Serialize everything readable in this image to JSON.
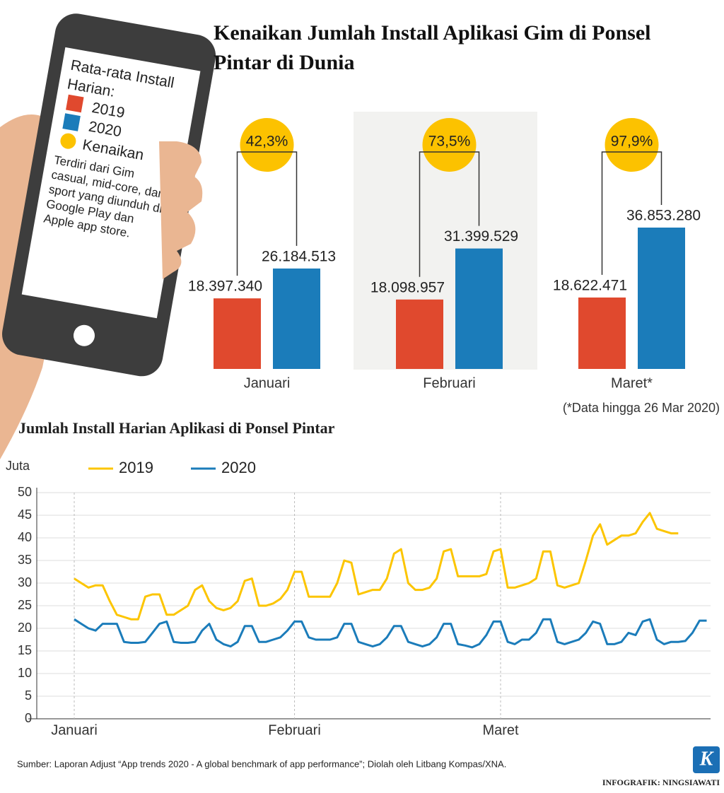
{
  "chart_data": [
    {
      "type": "bar",
      "title": "Kenaikan Jumlah Install Aplikasi Gim di Ponsel Pintar di Dunia",
      "legend_title": "Rata-rata Install Harian:",
      "legend_note": "Terdiri dari Gim casual, mid-core, dan sport yang diunduh di Google Play dan Apple app store.",
      "categories": [
        "Januari",
        "Februari",
        "Maret*"
      ],
      "series": [
        {
          "name": "2019",
          "color": "#e0492e",
          "values": [
            18397340,
            18098957,
            18622471
          ],
          "value_labels": [
            "18.397.340",
            "18.098.957",
            "18.622.471"
          ]
        },
        {
          "name": "2020",
          "color": "#1b7cba",
          "values": [
            26184513,
            31399529,
            36853280
          ],
          "value_labels": [
            "26.184.513",
            "31.399.529",
            "36.853.280"
          ]
        }
      ],
      "increase": {
        "name": "Kenaikan",
        "color": "#fcc200",
        "values": [
          42.3,
          73.5,
          97.9
        ],
        "value_labels": [
          "42,3%",
          "73,5%",
          "97,9%"
        ]
      },
      "note": "(*Data hingga 26 Mar 2020)"
    },
    {
      "type": "line",
      "title": "Jumlah Install Harian Aplikasi di Ponsel Pintar",
      "y_label": "Juta",
      "categories": [
        "Januari",
        null,
        null,
        null,
        null,
        null,
        null,
        null,
        null,
        null,
        null,
        null,
        null,
        null,
        null,
        null,
        null,
        null,
        null,
        null,
        null,
        null,
        null,
        null,
        null,
        null,
        null,
        null,
        null,
        null,
        null,
        "Februari",
        null,
        null,
        null,
        null,
        null,
        null,
        null,
        null,
        null,
        null,
        null,
        null,
        null,
        null,
        null,
        null,
        null,
        null,
        null,
        null,
        null,
        null,
        null,
        null,
        null,
        null,
        null,
        null,
        "Maret",
        null,
        null,
        null,
        null,
        null,
        null,
        null,
        null,
        null,
        null,
        null,
        null,
        null,
        null,
        null,
        null,
        null,
        null,
        null,
        null,
        null,
        null,
        null,
        null,
        null,
        null,
        null,
        null,
        null
      ],
      "series": [
        {
          "name": "2019",
          "color": "#fcc500",
          "values": [
            31,
            30,
            29,
            29.5,
            29.5,
            26,
            23,
            22.5,
            22,
            22,
            27,
            27.5,
            27.5,
            23,
            23,
            24,
            25,
            28.5,
            29.5,
            26,
            24.5,
            24,
            24.5,
            26,
            30.5,
            31,
            25,
            25,
            25.5,
            26.5,
            28.5,
            32.5,
            32.5,
            27,
            27,
            27,
            27,
            30,
            35,
            34.5,
            27.5,
            28,
            28.5,
            28.5,
            31,
            36.5,
            37.5,
            30,
            28.5,
            28.5,
            29,
            31,
            37,
            37.5,
            31.5,
            31.5,
            31.5,
            31.5,
            32,
            37,
            37.5,
            29,
            29,
            29.5,
            30,
            31,
            37,
            37,
            29.5,
            29,
            29.5,
            30,
            35,
            40.5,
            43,
            38.5,
            39.5,
            40.5,
            40.5,
            41,
            43.5,
            45.5,
            42,
            41.5,
            41,
            41,
            null,
            null,
            null,
            null
          ]
        },
        {
          "name": "2020",
          "color": "#1b7cba",
          "values": [
            22,
            21,
            20,
            19.5,
            21,
            21,
            21,
            17,
            16.8,
            16.8,
            17,
            19,
            21,
            21.5,
            17,
            16.8,
            16.8,
            17,
            19.5,
            21,
            17.5,
            16.5,
            16,
            17,
            20.5,
            20.5,
            17,
            17,
            17.5,
            18,
            19.5,
            21.5,
            21.5,
            18,
            17.5,
            17.5,
            17.5,
            18,
            21,
            21,
            17,
            16.5,
            16,
            16.5,
            18,
            20.5,
            20.5,
            17,
            16.5,
            16,
            16.5,
            18,
            21,
            21,
            16.5,
            16.2,
            15.8,
            16.5,
            18.5,
            21.5,
            21.5,
            17,
            16.5,
            17.5,
            17.5,
            19,
            22,
            22,
            17,
            16.5,
            17,
            17.5,
            19,
            21.5,
            21,
            16.5,
            16.5,
            17,
            19,
            18.5,
            21.5,
            22,
            17.5,
            16.5,
            17,
            17,
            17.2,
            19,
            21.7,
            21.7
          ]
        }
      ],
      "ylim": [
        0,
        50
      ],
      "yticks": [
        0,
        5,
        10,
        15,
        20,
        25,
        30,
        35,
        40,
        45,
        50
      ],
      "grid": true
    }
  ],
  "footer": {
    "source": "Sumber: Laporan Adjust “App trends 2020 - A global benchmark of app performance”; Diolah oleh Litbang Kompas/XNA.",
    "logo": "K",
    "credit": "INFOGRAFIK: NINGSIAWATI"
  }
}
